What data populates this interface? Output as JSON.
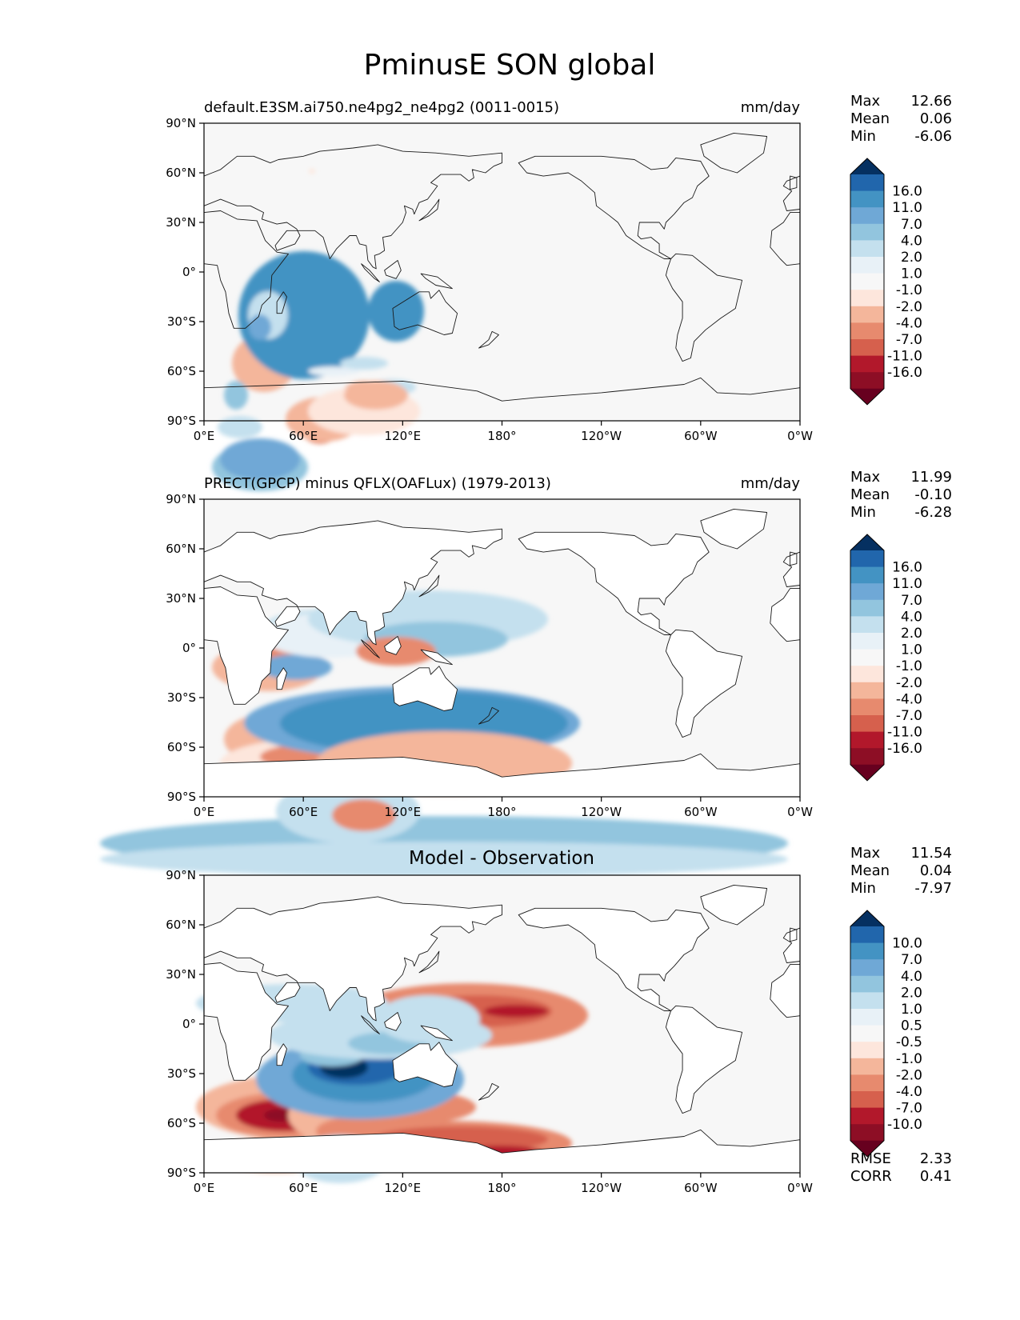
{
  "figure": {
    "title": "PminusE SON global"
  },
  "panels": [
    {
      "left_title": "default.E3SM.ai750.ne4pg2_ne4pg2 (0011-0015)",
      "center_title": "",
      "right_title": "mm/day",
      "stats": [
        {
          "label": "Max",
          "value": "12.66"
        },
        {
          "label": "Mean",
          "value": "0.06"
        },
        {
          "label": "Min",
          "value": "-6.06"
        }
      ],
      "colorbar_ticks": [
        "16.0",
        "11.0",
        "7.0",
        "4.0",
        "2.0",
        "1.0",
        "-1.0",
        "-2.0",
        "-4.0",
        "-7.0",
        "-11.0",
        "-16.0"
      ]
    },
    {
      "left_title": "PRECT(GPCP) minus QFLX(OAFLux) (1979-2013)",
      "center_title": "",
      "right_title": "mm/day",
      "stats": [
        {
          "label": "Max",
          "value": "11.99"
        },
        {
          "label": "Mean",
          "value": "-0.10"
        },
        {
          "label": "Min",
          "value": "-6.28"
        }
      ],
      "colorbar_ticks": [
        "16.0",
        "11.0",
        "7.0",
        "4.0",
        "2.0",
        "1.0",
        "-1.0",
        "-2.0",
        "-4.0",
        "-7.0",
        "-11.0",
        "-16.0"
      ]
    },
    {
      "left_title": "",
      "center_title": "Model - Observation",
      "right_title": "",
      "stats": [
        {
          "label": "Max",
          "value": "11.54"
        },
        {
          "label": "Mean",
          "value": "0.04"
        },
        {
          "label": "Min",
          "value": "-7.97"
        }
      ],
      "extra_stats": [
        {
          "label": "RMSE",
          "value": "2.33"
        },
        {
          "label": "CORR",
          "value": "0.41"
        }
      ],
      "colorbar_ticks": [
        "10.0",
        "7.0",
        "4.0",
        "2.0",
        "1.0",
        "0.5",
        "-0.5",
        "-1.0",
        "-2.0",
        "-4.0",
        "-7.0",
        "-10.0"
      ]
    }
  ],
  "axes": {
    "lat_ticks": [
      "90°N",
      "60°N",
      "30°N",
      "0°",
      "30°S",
      "60°S",
      "90°S"
    ],
    "lon_ticks": [
      "0°E",
      "60°E",
      "120°E",
      "180°",
      "120°W",
      "60°W",
      "0°W"
    ]
  },
  "colormap": {
    "name": "RdBu_r",
    "top_to_bottom": [
      "#053061",
      "#2166ac",
      "#4393c3",
      "#6fa8d6",
      "#92c5de",
      "#c4e0ee",
      "#e8f1f7",
      "#f7f7f7",
      "#fde6dc",
      "#f4b69b",
      "#e78a6e",
      "#d6604d",
      "#b2182b",
      "#8d0e25",
      "#67001f"
    ],
    "missing": "#ffffff",
    "coastline": "#1a1a1a"
  }
}
